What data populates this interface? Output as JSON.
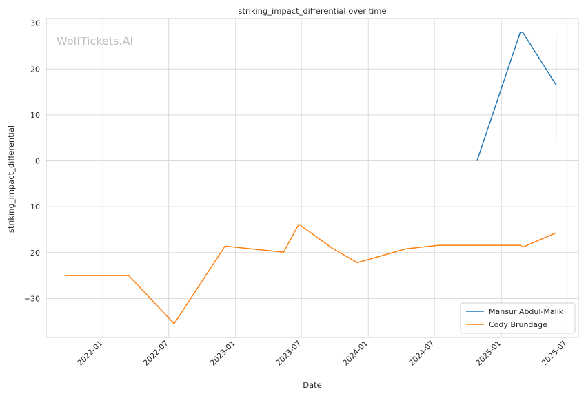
{
  "watermark": "WolfTickets.AI",
  "chart_data": {
    "type": "line",
    "title": "striking_impact_differential over time",
    "xlabel": "Date",
    "ylabel": "striking_impact_differential",
    "xlim": [
      "2021-07-29",
      "2025-08-01"
    ],
    "ylim": [
      -38.5,
      31
    ],
    "x_ticks": [
      "2022-01",
      "2022-07",
      "2023-01",
      "2023-07",
      "2024-01",
      "2024-07",
      "2025-01",
      "2025-07"
    ],
    "y_ticks": [
      -30,
      -20,
      -10,
      0,
      10,
      20,
      30
    ],
    "grid": true,
    "legend_position": "bottom-right",
    "series": [
      {
        "name": "Mansur Abdul-Malik",
        "color": "#1f77b4",
        "points": [
          {
            "x": "2024-10-26",
            "y": 0
          },
          {
            "x": "2025-02-22",
            "y": 28
          },
          {
            "x": "2025-03-01",
            "y": 28
          },
          {
            "x": "2025-06-01",
            "y": 16.5
          }
        ],
        "band": {
          "x": "2025-06-01",
          "low": 4.8,
          "high": 27.8
        }
      },
      {
        "name": "Cody Brundage",
        "color": "#ff7f0e",
        "points": [
          {
            "x": "2021-09-18",
            "y": -25
          },
          {
            "x": "2022-03-13",
            "y": -25
          },
          {
            "x": "2022-07-16",
            "y": -35.5
          },
          {
            "x": "2022-12-03",
            "y": -18.6
          },
          {
            "x": "2023-05-13",
            "y": -19.9
          },
          {
            "x": "2023-06-24",
            "y": -13.8
          },
          {
            "x": "2023-09-23",
            "y": -19
          },
          {
            "x": "2023-12-02",
            "y": -22.2
          },
          {
            "x": "2024-04-13",
            "y": -19.2
          },
          {
            "x": "2024-07-13",
            "y": -18.4
          },
          {
            "x": "2025-02-22",
            "y": -18.4
          },
          {
            "x": "2025-03-01",
            "y": -18.8
          },
          {
            "x": "2025-06-01",
            "y": -15.7
          }
        ]
      }
    ]
  }
}
